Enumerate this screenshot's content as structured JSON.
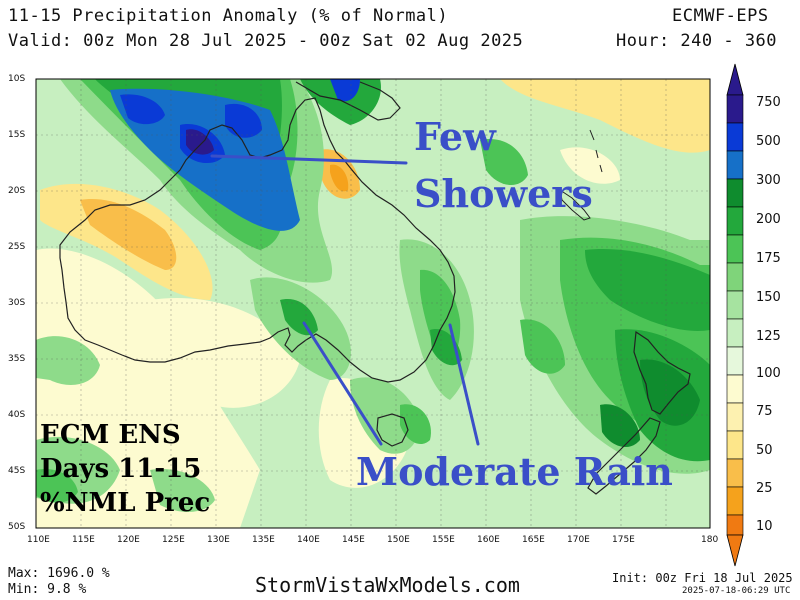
{
  "header": {
    "title": "11-15 Precipitation Anomaly (% of Normal)",
    "valid": "Valid: 00z Mon 28 Jul 2025 - 00z Sat 02 Aug 2025",
    "model": "ECMWF-EPS",
    "hour": "Hour: 240 - 360"
  },
  "map": {
    "lat_labels": [
      "10S",
      "15S",
      "20S",
      "25S",
      "30S",
      "35S",
      "40S",
      "45S",
      "50S"
    ],
    "lon_labels": [
      "110E",
      "115E",
      "120E",
      "125E",
      "130E",
      "135E",
      "140E",
      "145E",
      "150E",
      "155E",
      "160E",
      "165E",
      "170E",
      "175E",
      "180"
    ]
  },
  "colorbar": {
    "levels": [
      "750",
      "500",
      "300",
      "200",
      "175",
      "150",
      "125",
      "100",
      "75",
      "50",
      "25",
      "10"
    ],
    "colors": [
      "#2a1a8c",
      "#0a3ad6",
      "#1670c8",
      "#0f8c2e",
      "#23a83c",
      "#4cc456",
      "#8edb8a",
      "#c7efc0",
      "#fdfbd0",
      "#fde68a",
      "#f9be4a",
      "#f5a21c",
      "#f07a12"
    ]
  },
  "annotations": {
    "few_showers_line1": "Few",
    "few_showers_line2": "Showers",
    "moderate_rain": "Moderate Rain",
    "ecm_line1": "ECM ENS",
    "ecm_line2": "Days 11-15",
    "ecm_line3": "%NML Prec",
    "text_color": "#3a4fc8",
    "line_color": "#3a4fc8"
  },
  "footer": {
    "max": "Max: 1696.0 %",
    "min": "Min:  9.8 %",
    "brand": "StormVistaWxModels.com",
    "init": "Init: 00z Fri 18 Jul 2025",
    "timestamp": "2025-07-18-06:29 UTC"
  }
}
